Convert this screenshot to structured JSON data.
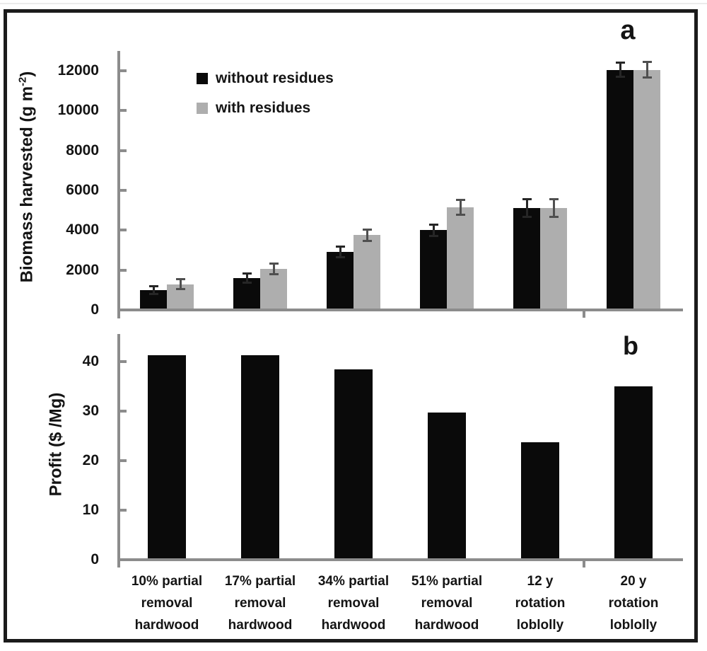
{
  "figure": {
    "panel_a_letter": "a",
    "panel_b_letter": "b",
    "legend": {
      "without_label": "without residues",
      "with_label": "with residues"
    },
    "panel_a_ylabel": {
      "prefix": "Biomass harvested (g m",
      "sup": "-2",
      "suffix": ")"
    },
    "panel_b_ylabel": "Profit ($ /Mg)",
    "colors": {
      "black_bar": "#0a0a0a",
      "gray_bar": "#aeaeae",
      "axis": "#8c8c8c",
      "error_on_black": "#262626",
      "error_on_gray": "#4f4f4f",
      "frame": "#1b1b1b",
      "text": "#141414"
    }
  },
  "chart_data": [
    {
      "type": "bar",
      "panel": "a",
      "title": "",
      "ylabel": "Biomass harvested (g m-2)",
      "xlabel": "",
      "grid": false,
      "legend_position": "upper-left-inside",
      "ylim": [
        0,
        13000
      ],
      "yticks": [
        0,
        2000,
        4000,
        6000,
        8000,
        10000,
        12000
      ],
      "categories": [
        "10% partial removal hardwood",
        "17% partial removal hardwood",
        "34% partial removal hardwood",
        "51% partial removal hardwood",
        "12 y rotation loblolly",
        "20 y rotation loblolly"
      ],
      "series": [
        {
          "name": "without residues",
          "color": "#0a0a0a",
          "values": [
            1000,
            1600,
            2900,
            4000,
            5100,
            12050
          ],
          "errors": [
            250,
            290,
            320,
            330,
            500,
            420
          ]
        },
        {
          "name": "with residues",
          "color": "#aeaeae",
          "values": [
            1280,
            2050,
            3750,
            5150,
            5100,
            12050
          ],
          "errors": [
            300,
            320,
            340,
            430,
            500,
            450
          ]
        }
      ]
    },
    {
      "type": "bar",
      "panel": "b",
      "title": "",
      "ylabel": "Profit ($ /Mg)",
      "xlabel": "",
      "grid": false,
      "ylim": [
        0,
        45
      ],
      "yticks": [
        0,
        10,
        20,
        30,
        40
      ],
      "categories": [
        "10% partial removal hardwood",
        "17% partial removal hardwood",
        "34% partial removal hardwood",
        "51% partial removal hardwood",
        "12 y rotation loblolly",
        "20 y rotation loblolly"
      ],
      "categories_lines": [
        [
          "10% partial",
          "removal",
          "hardwood"
        ],
        [
          "17% partial",
          "removal",
          "hardwood"
        ],
        [
          "34% partial",
          "removal",
          "hardwood"
        ],
        [
          "51% partial",
          "removal",
          "hardwood"
        ],
        [
          "12 y",
          "rotation",
          "loblolly"
        ],
        [
          "20 y",
          "rotation",
          "loblolly"
        ]
      ],
      "series": [
        {
          "name": "Profit",
          "color": "#0a0a0a",
          "values": [
            41.3,
            41.3,
            38.5,
            29.7,
            23.7,
            35.0
          ]
        }
      ]
    }
  ]
}
